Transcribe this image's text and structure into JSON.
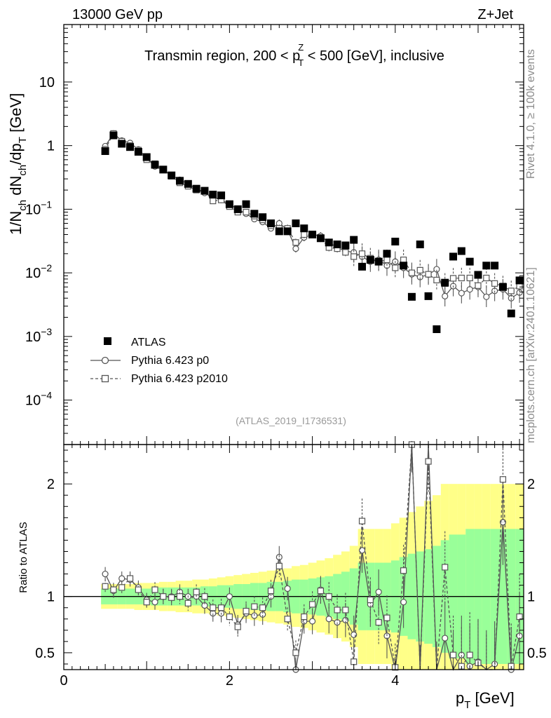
{
  "header": {
    "left": "13000 GeV pp",
    "right": "Z+Jet"
  },
  "side_labels": {
    "rivet": "Rivet 4.1.0, ≥ 100k events",
    "mcplots": "mcplots.cern.ch [arXiv:2401.10621]"
  },
  "watermark": "(ATLAS_2019_I1736531)",
  "colors": {
    "data": "#000000",
    "mc": "#555555",
    "band_inner": "#99ff99",
    "band_outer": "#ffff88"
  },
  "chart_data": [
    {
      "type": "scatter",
      "panel": "main",
      "title_parts": {
        "before": "Transmin region, 200 < p",
        "sup": "Z",
        "sub": "T",
        "after": " < 500 [GeV], inclusive"
      },
      "ylabel_parts": {
        "a": "1/N",
        "a_sub": "ch",
        "b": " dN",
        "b_sub": "ch",
        "c": "/dp",
        "c_sub": "T",
        "d": " [GeV]"
      },
      "yscale": "log",
      "ylim": [
        2e-05,
        80
      ],
      "xlim": [
        0,
        5.55
      ],
      "yticks": [
        {
          "v": 10,
          "base": "10",
          "exp": ""
        },
        {
          "v": 1,
          "base": "1",
          "exp": ""
        },
        {
          "v": 0.1,
          "base": "10",
          "exp": "−1"
        },
        {
          "v": 0.01,
          "base": "10",
          "exp": "−2"
        },
        {
          "v": 0.001,
          "base": "10",
          "exp": "−3"
        },
        {
          "v": 0.0001,
          "base": "10",
          "exp": "−4"
        }
      ],
      "x": [
        0.5,
        0.6,
        0.7,
        0.8,
        0.9,
        1.0,
        1.1,
        1.2,
        1.3,
        1.4,
        1.5,
        1.6,
        1.7,
        1.8,
        1.9,
        2.0,
        2.1,
        2.2,
        2.3,
        2.4,
        2.5,
        2.6,
        2.7,
        2.8,
        2.9,
        3.0,
        3.1,
        3.2,
        3.3,
        3.4,
        3.5,
        3.6,
        3.7,
        3.8,
        3.9,
        4.0,
        4.1,
        4.2,
        4.3,
        4.4,
        4.5,
        4.6,
        4.7,
        4.8,
        4.9,
        5.0,
        5.1,
        5.2,
        5.3,
        5.4,
        5.5
      ],
      "series": [
        {
          "name": "ATLAS",
          "marker": "square-filled",
          "values": [
            0.82,
            1.45,
            1.07,
            0.95,
            0.8,
            0.66,
            0.5,
            0.42,
            0.34,
            0.28,
            0.25,
            0.21,
            0.195,
            0.17,
            0.165,
            0.12,
            0.1,
            0.12,
            0.085,
            0.075,
            0.06,
            0.045,
            0.045,
            0.06,
            0.05,
            0.04,
            0.035,
            0.03,
            0.028,
            0.027,
            0.033,
            0.0125,
            0.016,
            0.015,
            0.02,
            0.031,
            0.013,
            0.0042,
            0.028,
            0.0043,
            0.0013,
            0.007,
            0.018,
            0.022,
            0.015,
            0.0093,
            0.013,
            0.013,
            0.006,
            0.0023,
            0.0076
          ]
        },
        {
          "name": "Pythia 6.423 p0",
          "marker": "circle-open",
          "line": "solid",
          "values": [
            0.98,
            1.55,
            1.2,
            1.1,
            0.87,
            0.64,
            0.47,
            0.42,
            0.34,
            0.29,
            0.25,
            0.21,
            0.18,
            0.155,
            0.14,
            0.12,
            0.1,
            0.085,
            0.07,
            0.063,
            0.05,
            0.06,
            0.048,
            0.024,
            0.036,
            0.04,
            0.038,
            0.03,
            0.025,
            0.022,
            0.021,
            0.018,
            0.015,
            0.016,
            0.013,
            0.015,
            0.012,
            0.0095,
            0.0086,
            0.0094,
            0.0114,
            0.0043,
            0.0062,
            0.0048,
            0.0055,
            0.006,
            0.0042,
            0.0052,
            0.0055,
            0.004,
            0.0049
          ]
        },
        {
          "name": "Pythia 6.423 p2010",
          "marker": "square-open",
          "line": "dashed",
          "values": [
            0.88,
            1.55,
            1.17,
            1.0,
            0.85,
            0.6,
            0.52,
            0.42,
            0.33,
            0.26,
            0.23,
            0.2,
            0.195,
            0.135,
            0.14,
            0.11,
            0.09,
            0.09,
            0.078,
            0.068,
            0.055,
            0.05,
            0.05,
            0.03,
            0.04,
            0.04,
            0.035,
            0.025,
            0.024,
            0.021,
            0.018,
            0.02,
            0.017,
            0.015,
            0.016,
            0.012,
            0.016,
            0.01,
            0.011,
            0.0095,
            0.0077,
            0.0068,
            0.0082,
            0.0083,
            0.0083,
            0.0063,
            0.0083,
            0.0068,
            0.0062,
            0.0052,
            0.0062
          ]
        }
      ],
      "legend": {
        "position": "middle-left",
        "entries": [
          "ATLAS",
          "Pythia 6.423 p0",
          "Pythia 6.423 p2010"
        ]
      }
    },
    {
      "type": "line",
      "panel": "ratio",
      "ylabel": "Ratio to ATLAS",
      "xlabel_parts": {
        "a": "p",
        "a_sub": "T",
        "b": " [GeV]"
      },
      "xlim": [
        0,
        5.55
      ],
      "ylim": [
        0.35,
        2.35
      ],
      "xticks": [
        {
          "v": 0,
          "label": "0"
        },
        {
          "v": 2,
          "label": "2"
        },
        {
          "v": 4,
          "label": "4"
        }
      ],
      "yticks": [
        {
          "v": 0.5,
          "label": "0.5"
        },
        {
          "v": 1,
          "label": "1"
        },
        {
          "v": 2,
          "label": "2"
        }
      ],
      "reference_line": 1,
      "band_inner": [
        0.07,
        0.07,
        0.07,
        0.07,
        0.07,
        0.07,
        0.08,
        0.08,
        0.08,
        0.08,
        0.08,
        0.08,
        0.09,
        0.09,
        0.1,
        0.1,
        0.11,
        0.11,
        0.12,
        0.12,
        0.13,
        0.13,
        0.14,
        0.15,
        0.15,
        0.16,
        0.17,
        0.18,
        0.2,
        0.22,
        0.25,
        0.3,
        0.3,
        0.3,
        0.3,
        0.32,
        0.35,
        0.38,
        0.4,
        0.42,
        0.45,
        0.5,
        0.55,
        0.55,
        0.6,
        0.6,
        0.6,
        0.6,
        0.6,
        0.6,
        0.6
      ],
      "band_outer": [
        0.11,
        0.11,
        0.11,
        0.11,
        0.12,
        0.12,
        0.12,
        0.13,
        0.13,
        0.14,
        0.14,
        0.15,
        0.15,
        0.16,
        0.17,
        0.18,
        0.19,
        0.2,
        0.21,
        0.22,
        0.23,
        0.24,
        0.25,
        0.27,
        0.28,
        0.3,
        0.32,
        0.34,
        0.37,
        0.4,
        0.45,
        0.6,
        0.6,
        0.6,
        0.6,
        0.65,
        0.7,
        0.75,
        0.8,
        0.85,
        0.9,
        1.0,
        1.0,
        1.0,
        1.0,
        1.0,
        1.0,
        1.0,
        1.0,
        1.0,
        1.0
      ],
      "series": [
        {
          "name": "Pythia 6.423 p0",
          "marker": "circle-open",
          "line": "solid",
          "values": [
            1.2,
            1.05,
            1.16,
            1.15,
            1.08,
            0.97,
            0.95,
            1.0,
            1.0,
            1.04,
            1.0,
            1.0,
            0.92,
            0.85,
            0.85,
            1.0,
            0.75,
            0.85,
            0.83,
            0.84,
            1.0,
            1.35,
            1.07,
            0.35,
            0.78,
            0.78,
            1.06,
            0.8,
            0.77,
            0.79,
            0.66,
            1.41,
            0.93,
            1.04,
            0.65,
            0.25,
            0.95,
            2.35,
            0.31,
            2.5,
            0.31,
            0.63,
            0.34,
            0.48,
            0.38,
            0.42,
            0.32,
            0.4,
            1.66,
            0.35,
            0.65
          ]
        },
        {
          "name": "Pythia 6.423 p2010",
          "marker": "square-open",
          "line": "dashed",
          "values": [
            1.09,
            1.06,
            1.08,
            1.16,
            1.06,
            0.95,
            1.06,
            1.0,
            0.99,
            1.0,
            0.94,
            1.04,
            1.0,
            0.9,
            0.9,
            0.82,
            0.73,
            0.87,
            0.91,
            0.9,
            1.05,
            1.27,
            0.8,
            0.5,
            0.82,
            0.93,
            1.05,
            1.0,
            0.88,
            0.88,
            0.42,
            1.67,
            0.97,
            0.77,
            0.81,
            0.37,
            1.23,
            2.35,
            0.3,
            2.2,
            0.26,
            1.26,
            0.48,
            0.38,
            0.48,
            0.41,
            0.28,
            0.32,
            2.04,
            0.38,
            0.82
          ]
        }
      ]
    }
  ]
}
